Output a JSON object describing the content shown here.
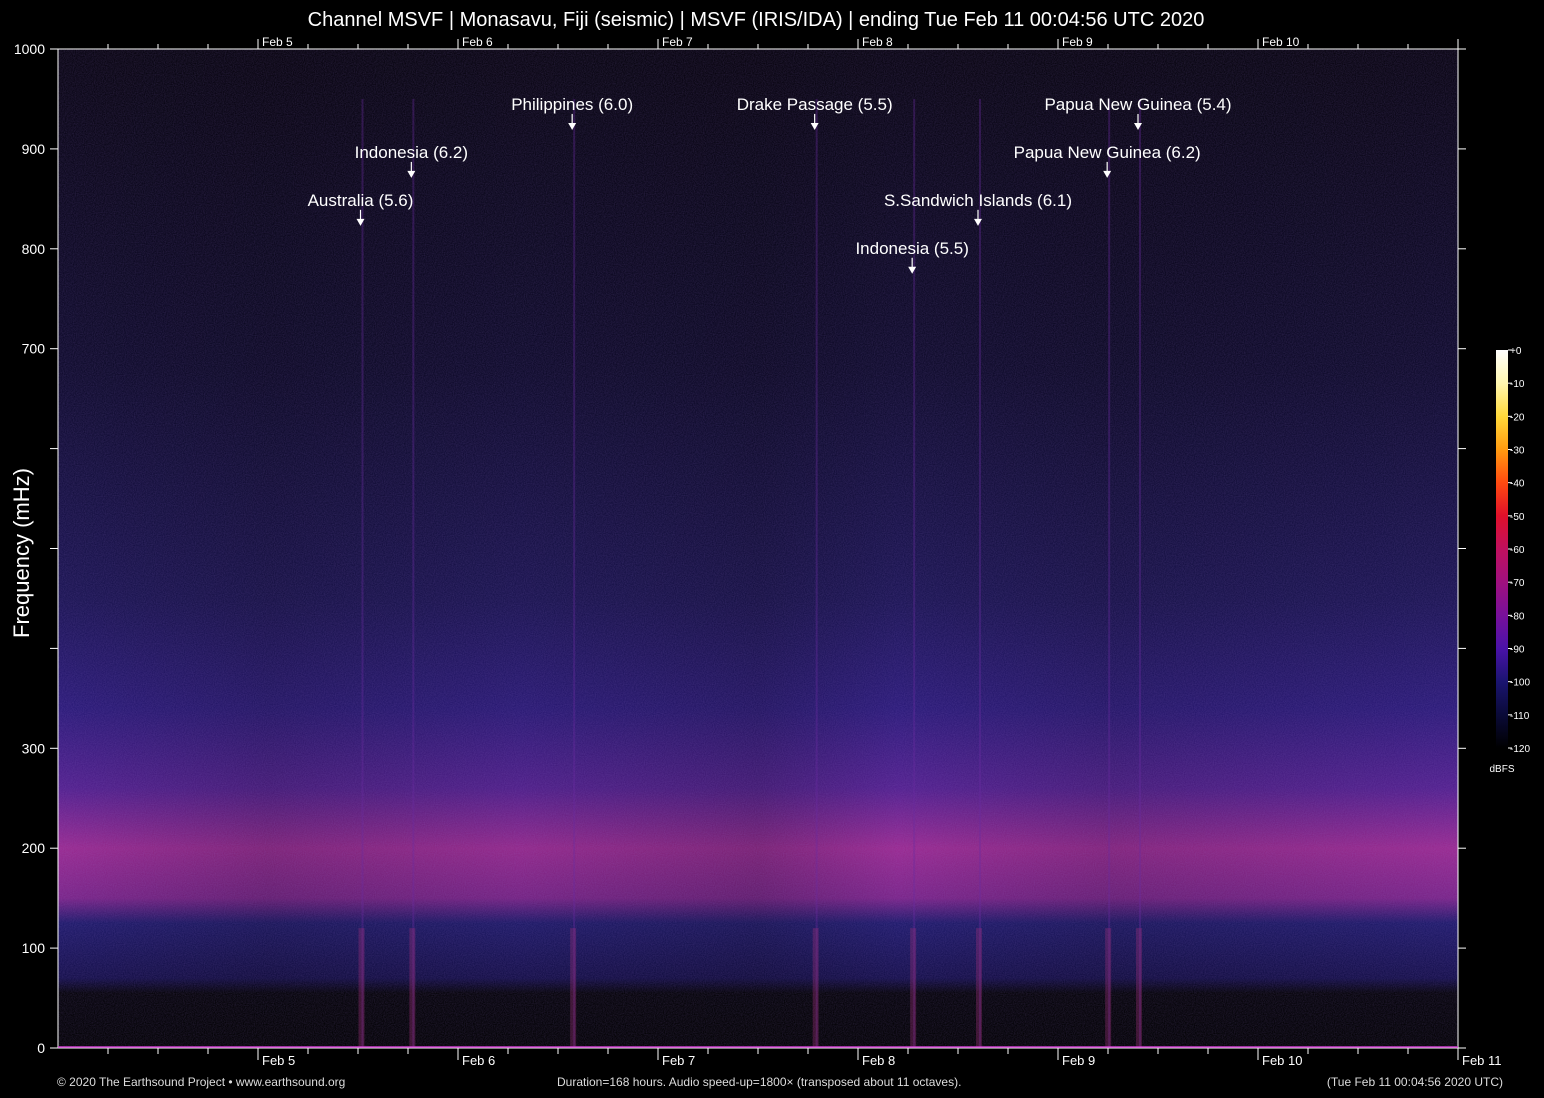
{
  "chart_data": {
    "type": "heatmap",
    "title": "Channel MSVF | Monasavu, Fiji (seismic) | MSVF (IRIS/IDA) | ending Tue Feb 11 00:04:56 UTC 2020",
    "ylabel": "Frequency (mHz)",
    "ylim": [
      0,
      1000
    ],
    "y_ticks": [
      0,
      100,
      200,
      300,
      400,
      500,
      600,
      700,
      800,
      900,
      1000
    ],
    "y_tick_labels": [
      "0",
      "100",
      "200",
      "300",
      "",
      "",
      "",
      "700",
      "800",
      "900",
      "1000"
    ],
    "xlim_hours": [
      0,
      168
    ],
    "x_day_ticks": [
      {
        "hours": 24,
        "label": "Feb 5"
      },
      {
        "hours": 48,
        "label": "Feb 6"
      },
      {
        "hours": 72,
        "label": "Feb 7"
      },
      {
        "hours": 96,
        "label": "Feb 8"
      },
      {
        "hours": 120,
        "label": "Feb 9"
      },
      {
        "hours": 144,
        "label": "Feb 10"
      },
      {
        "hours": 168,
        "label": "Feb 11"
      }
    ],
    "events": [
      {
        "label": "Australia (5.6)",
        "hours": 36.3,
        "freq": 843
      },
      {
        "label": "Indonesia (6.2)",
        "hours": 42.4,
        "freq": 891
      },
      {
        "label": "Philippines (6.0)",
        "hours": 61.7,
        "freq": 939
      },
      {
        "label": "Drake Passage (5.5)",
        "hours": 90.8,
        "freq": 939
      },
      {
        "label": "S.Sandwich Islands (6.1)",
        "hours": 110.4,
        "freq": 843
      },
      {
        "label": "Indonesia (5.5)",
        "hours": 102.5,
        "freq": 795
      },
      {
        "label": "Papua New Guinea (6.2)",
        "hours": 125.9,
        "freq": 891
      },
      {
        "label": "Papua New Guinea (5.4)",
        "hours": 129.6,
        "freq": 939
      }
    ],
    "colorbar": {
      "unit": "dBFS",
      "range": [
        -120,
        0
      ],
      "ticks": [
        "+0",
        "-10",
        "-20",
        "-30",
        "-40",
        "-50",
        "-60",
        "-70",
        "-80",
        "-90",
        "-100",
        "-110",
        "-120"
      ],
      "colors": [
        "#ffffff",
        "#fff7b0",
        "#ffd93a",
        "#ff9a10",
        "#ff4a10",
        "#e0102a",
        "#c0105e",
        "#a0107e",
        "#78109a",
        "#4a12a8",
        "#1a1470",
        "#0a0a38",
        "#000000"
      ]
    }
  },
  "footer": {
    "left": "© 2020 The Earthsound Project • www.earthsound.org",
    "center": "Duration=168 hours. Audio speed-up=1800× (transposed about 11 octaves).",
    "right": "(Tue Feb 11 00:04:56 2020 UTC)"
  }
}
